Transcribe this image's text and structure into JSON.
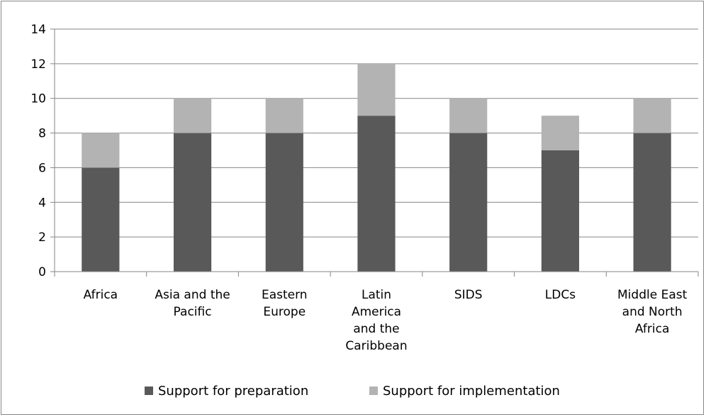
{
  "chart_data": {
    "type": "bar",
    "stacked": true,
    "categories": [
      [
        "Africa"
      ],
      [
        "Asia and the",
        "Pacific"
      ],
      [
        "Eastern",
        "Europe"
      ],
      [
        "Latin",
        "America",
        "and the",
        "Caribbean"
      ],
      [
        "SIDS"
      ],
      [
        "LDCs"
      ],
      [
        "Middle East",
        "and North",
        "Africa"
      ]
    ],
    "series": [
      {
        "name": "Support for preparation",
        "color": "#595959",
        "values": [
          6,
          8,
          8,
          9,
          8,
          7,
          8
        ]
      },
      {
        "name": "Support for implementation",
        "color": "#b3b3b3",
        "values": [
          2,
          2,
          2,
          3,
          2,
          2,
          2
        ]
      }
    ],
    "ylim": [
      0,
      14
    ],
    "yticks": [
      "0",
      "2",
      "4",
      "6",
      "8",
      "10",
      "12",
      "14"
    ],
    "grid": true,
    "legend": "bottom"
  }
}
